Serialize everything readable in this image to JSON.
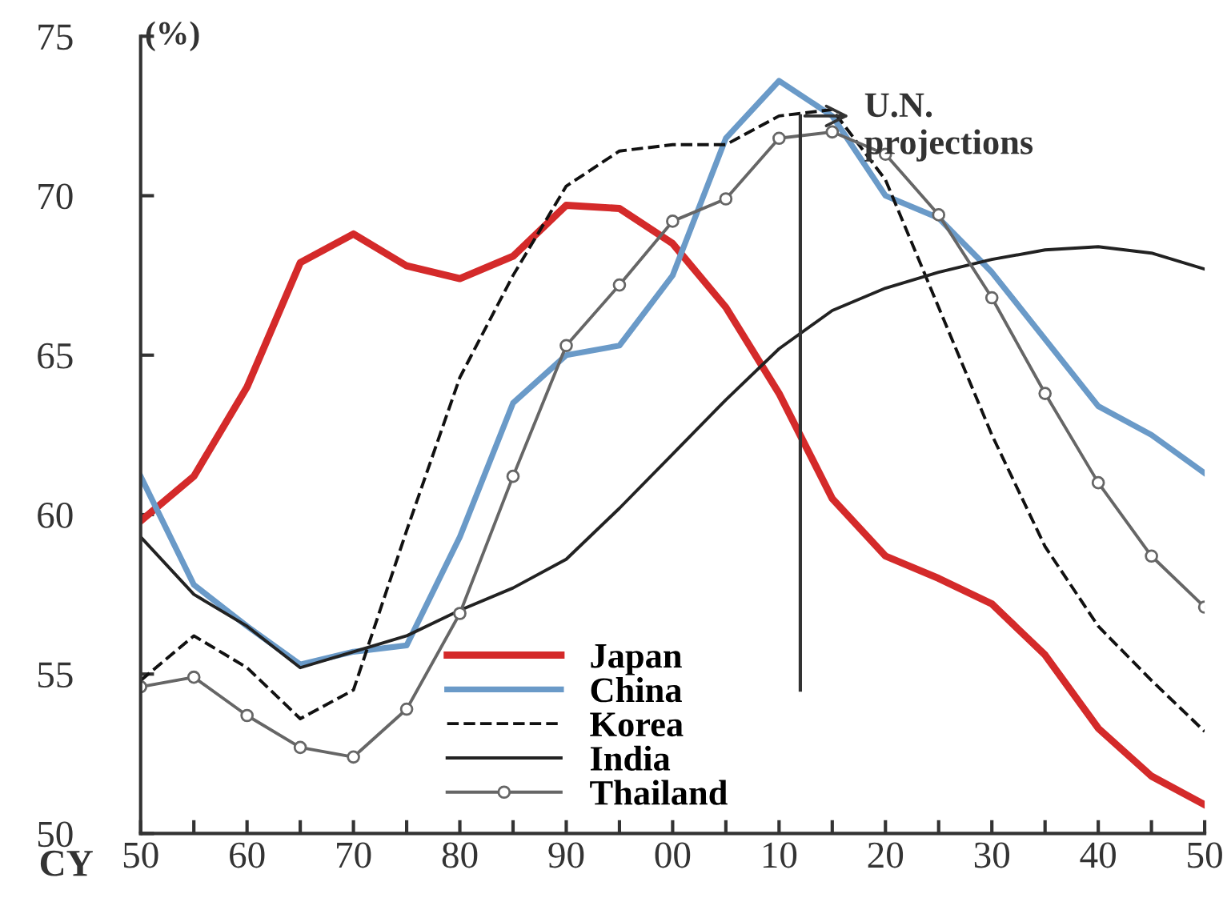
{
  "chart_data": {
    "type": "line",
    "ylabel": "(%)",
    "xlabel": "CY",
    "x": [
      1950,
      1955,
      1960,
      1965,
      1970,
      1975,
      1980,
      1985,
      1990,
      1995,
      2000,
      2005,
      2010,
      2015,
      2020,
      2025,
      2030,
      2035,
      2040,
      2045,
      2050
    ],
    "xlim": [
      1950,
      2050
    ],
    "xticks": [
      {
        "value": 1950,
        "label": "50"
      },
      {
        "value": 1955,
        "label": null
      },
      {
        "value": 1960,
        "label": "60"
      },
      {
        "value": 1965,
        "label": null
      },
      {
        "value": 1970,
        "label": "70"
      },
      {
        "value": 1975,
        "label": null
      },
      {
        "value": 1980,
        "label": "80"
      },
      {
        "value": 1985,
        "label": null
      },
      {
        "value": 1990,
        "label": "90"
      },
      {
        "value": 1995,
        "label": null
      },
      {
        "value": 2000,
        "label": "00"
      },
      {
        "value": 2005,
        "label": null
      },
      {
        "value": 2010,
        "label": "10"
      },
      {
        "value": 2015,
        "label": null
      },
      {
        "value": 2020,
        "label": "20"
      },
      {
        "value": 2025,
        "label": null
      },
      {
        "value": 2030,
        "label": "30"
      },
      {
        "value": 2035,
        "label": null
      },
      {
        "value": 2040,
        "label": "40"
      },
      {
        "value": 2045,
        "label": null
      },
      {
        "value": 2050,
        "label": "50"
      }
    ],
    "ylim": [
      50,
      75
    ],
    "yticks": [
      50,
      55,
      60,
      65,
      70,
      75
    ],
    "grid": false,
    "legend": "bottom",
    "series": [
      {
        "name": "Japan",
        "color": "#d42a2a",
        "line_style": "solid",
        "marker": "none",
        "values": [
          59.8,
          61.2,
          64.0,
          67.9,
          68.8,
          67.8,
          67.4,
          68.1,
          69.7,
          69.6,
          68.5,
          66.5,
          63.8,
          60.5,
          58.7,
          58.0,
          57.2,
          55.6,
          53.3,
          51.8,
          50.9
        ]
      },
      {
        "name": "China",
        "color": "#6a9ac8",
        "line_style": "solid",
        "marker": "none",
        "values": [
          61.2,
          57.8,
          56.5,
          55.3,
          55.7,
          55.9,
          59.3,
          63.5,
          65.0,
          65.3,
          67.5,
          71.8,
          73.6,
          72.5,
          70.0,
          69.3,
          67.6,
          65.5,
          63.4,
          62.5,
          61.3
        ]
      },
      {
        "name": "Korea",
        "color": "#111111",
        "line_style": "dashed",
        "marker": "none",
        "values": [
          54.8,
          56.2,
          55.2,
          53.6,
          54.5,
          59.5,
          64.3,
          67.5,
          70.3,
          71.4,
          71.6,
          71.6,
          72.5,
          72.7,
          70.5,
          66.5,
          62.5,
          59.0,
          56.5,
          54.8,
          53.2
        ]
      },
      {
        "name": "India",
        "color": "#222222",
        "line_style": "solid",
        "marker": "none",
        "values": [
          59.3,
          57.5,
          56.5,
          55.2,
          55.7,
          56.2,
          57.0,
          57.7,
          58.6,
          60.2,
          61.9,
          63.6,
          65.2,
          66.4,
          67.1,
          67.6,
          68.0,
          68.3,
          68.4,
          68.2,
          67.7
        ]
      },
      {
        "name": "Thailand",
        "color": "#666666",
        "line_style": "solid",
        "marker": "circle",
        "values": [
          54.6,
          54.9,
          53.7,
          52.7,
          52.4,
          53.9,
          56.9,
          61.2,
          65.3,
          67.2,
          69.2,
          69.9,
          71.8,
          72.0,
          71.3,
          69.4,
          66.8,
          63.8,
          61.0,
          58.7,
          57.1
        ]
      }
    ],
    "ref_lines": [
      {
        "axis": "x",
        "value": 2012,
        "label": "U.N.\nprojections",
        "color": "#333333"
      }
    ]
  }
}
